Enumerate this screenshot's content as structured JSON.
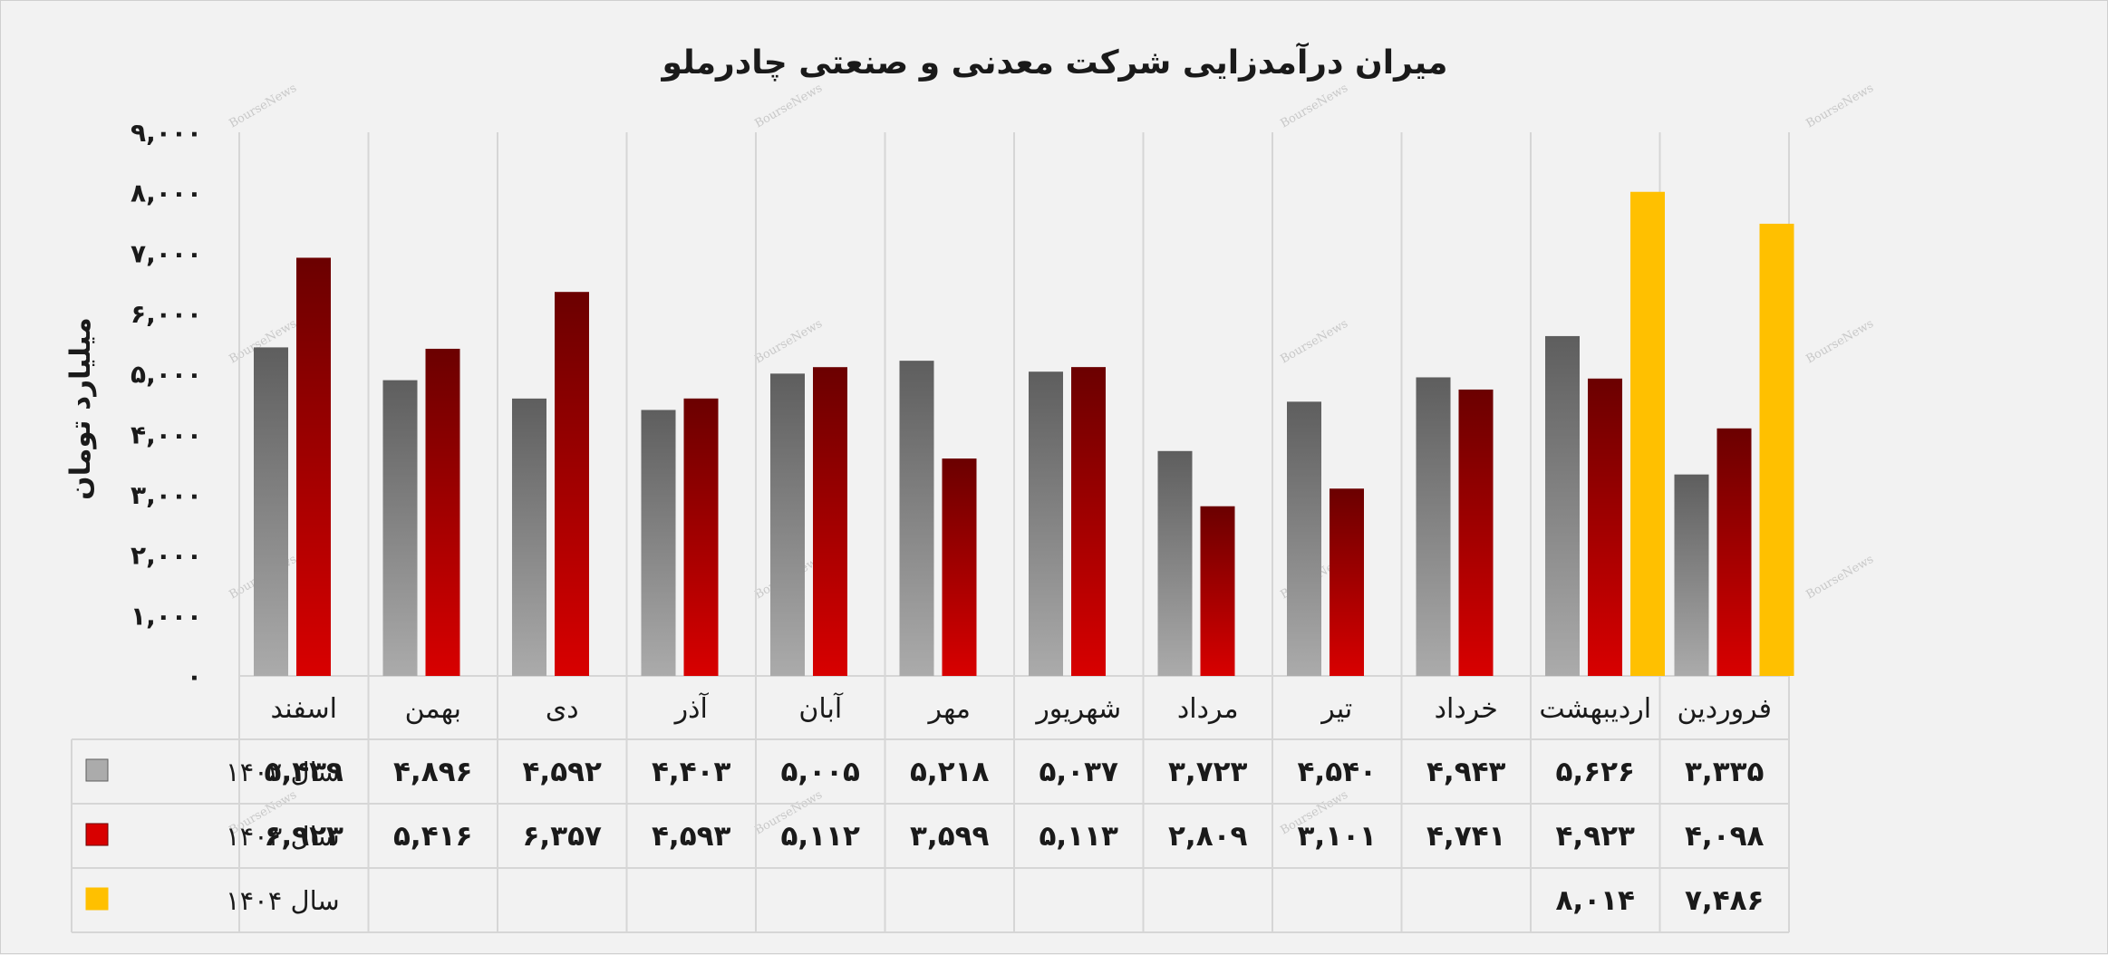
{
  "colors": {
    "s1402_top": "#5e5e5e",
    "s1402_bottom": "#ababab",
    "s1403_top": "#6b0000",
    "s1403_bottom": "#d80000",
    "s1404": "#ffc000",
    "grid": "#d6d6d6",
    "background": "#f2f2f2"
  },
  "watermark_text": "BourseNews",
  "chart_data": {
    "type": "bar",
    "title": "میران درآمدزایی شرکت معدنی و صنعتی چادرملو",
    "ylabel": "میلیارد تومان",
    "xlabel": "",
    "ylim": [
      0,
      9000
    ],
    "y_ticks": [
      0,
      1000,
      2000,
      3000,
      4000,
      5000,
      6000,
      7000,
      8000,
      9000
    ],
    "y_tick_labels": [
      "۰",
      "۱,۰۰۰",
      "۲,۰۰۰",
      "۳,۰۰۰",
      "۴,۰۰۰",
      "۵,۰۰۰",
      "۶,۰۰۰",
      "۷,۰۰۰",
      "۸,۰۰۰",
      "۹,۰۰۰"
    ],
    "grid": "vertical category separators",
    "legend_position": "data table, left",
    "categories": [
      "فروردین",
      "اردیبهشت",
      "خرداد",
      "تیر",
      "مرداد",
      "شهریور",
      "مهر",
      "آبان",
      "آذر",
      "دی",
      "بهمن",
      "اسفند"
    ],
    "series": [
      {
        "name": "سال ۱۴۰۲",
        "color": "gray",
        "values": [
          3335,
          5626,
          4943,
          4540,
          3723,
          5037,
          5218,
          5005,
          4403,
          4592,
          4896,
          5439
        ],
        "labels": [
          "۳,۳۳۵",
          "۵,۶۲۶",
          "۴,۹۴۳",
          "۴,۵۴۰",
          "۳,۷۲۳",
          "۵,۰۳۷",
          "۵,۲۱۸",
          "۵,۰۰۵",
          "۴,۴۰۳",
          "۴,۵۹۲",
          "۴,۸۹۶",
          "۵,۴۳۹"
        ]
      },
      {
        "name": "سال ۱۴۰۳",
        "color": "red",
        "values": [
          4098,
          4923,
          4741,
          3101,
          2809,
          5113,
          3599,
          5112,
          4593,
          6357,
          5416,
          6923
        ],
        "labels": [
          "۴,۰۹۸",
          "۴,۹۲۳",
          "۴,۷۴۱",
          "۳,۱۰۱",
          "۲,۸۰۹",
          "۵,۱۱۳",
          "۳,۵۹۹",
          "۵,۱۱۲",
          "۴,۵۹۳",
          "۶,۳۵۷",
          "۵,۴۱۶",
          "۶,۹۲۳"
        ]
      },
      {
        "name": "سال ۱۴۰۴",
        "color": "gold",
        "values": [
          7486,
          8014,
          null,
          null,
          null,
          null,
          null,
          null,
          null,
          null,
          null,
          null
        ],
        "labels": [
          "۷,۴۸۶",
          "۸,۰۱۴",
          "",
          "",
          "",
          "",
          "",
          "",
          "",
          "",
          "",
          ""
        ]
      }
    ]
  }
}
